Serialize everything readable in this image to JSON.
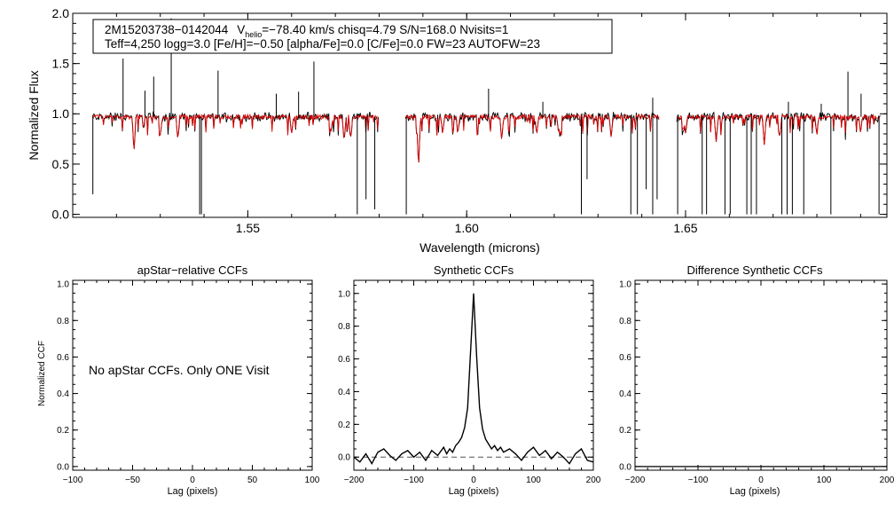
{
  "chart_data": [
    {
      "type": "line",
      "xlabel": "Wavelength (microns)",
      "ylabel": "Normalized Flux",
      "xlim": [
        1.51,
        1.696
      ],
      "ylim": [
        -0.03,
        2.0
      ],
      "xticks": [
        1.55,
        1.6,
        1.65
      ],
      "xtick_labels": [
        "1.55",
        "1.60",
        "1.65"
      ],
      "yticks": [
        0.0,
        0.5,
        1.0,
        1.5,
        2.0
      ],
      "ytick_labels": [
        "0.0",
        "0.5",
        "1.0",
        "1.5",
        "2.0"
      ],
      "grid": false,
      "colors": {
        "observed": "#000000",
        "model": "#e00000"
      },
      "annotation": {
        "line1_object": "2M15203738−0142044",
        "line1_vhelio_v": "V",
        "line1_vhelio_sub": "helio",
        "line1_rest": "=−78.40 km/s  chisq=4.79  S/N=168.0  Nvisits=1",
        "line2": "Teff=4,250 logg=3.0 [Fe/H]=−0.50 [alpha/Fe]=0.0 [C/Fe]=0.0 FW=23 AUTOFW=23"
      },
      "segments": [
        [
          1.5145,
          1.58
        ],
        [
          1.586,
          1.644
        ],
        [
          1.648,
          1.6945
        ]
      ],
      "continuum": 0.97,
      "emission_spikes": [
        {
          "x": 1.5215,
          "y": 1.55
        },
        {
          "x": 1.5265,
          "y": 1.23
        },
        {
          "x": 1.5285,
          "y": 1.37
        },
        {
          "x": 1.5325,
          "y": 1.95
        },
        {
          "x": 1.5432,
          "y": 1.43
        },
        {
          "x": 1.5565,
          "y": 1.2
        },
        {
          "x": 1.5616,
          "y": 1.22
        },
        {
          "x": 1.5651,
          "y": 1.52
        },
        {
          "x": 1.605,
          "y": 1.25
        },
        {
          "x": 1.6174,
          "y": 1.12
        },
        {
          "x": 1.6425,
          "y": 1.16
        },
        {
          "x": 1.6735,
          "y": 1.12
        },
        {
          "x": 1.681,
          "y": 1.1
        },
        {
          "x": 1.6871,
          "y": 1.42
        },
        {
          "x": 1.6901,
          "y": 1.2
        }
      ],
      "bad_pixel_dips": [
        {
          "x": 1.5146,
          "y": 0.2
        },
        {
          "x": 1.539,
          "y": 0.0
        },
        {
          "x": 1.5394,
          "y": 0.0
        },
        {
          "x": 1.575,
          "y": 0.0
        },
        {
          "x": 1.577,
          "y": 0.15
        },
        {
          "x": 1.579,
          "y": 0.05
        },
        {
          "x": 1.5862,
          "y": 0.0
        },
        {
          "x": 1.6262,
          "y": 0.0
        },
        {
          "x": 1.6275,
          "y": 0.35
        },
        {
          "x": 1.6375,
          "y": 0.0
        },
        {
          "x": 1.639,
          "y": 0.0
        },
        {
          "x": 1.641,
          "y": 0.25
        },
        {
          "x": 1.6425,
          "y": 0.0
        },
        {
          "x": 1.6435,
          "y": 0.15
        },
        {
          "x": 1.6482,
          "y": 0.0
        },
        {
          "x": 1.6538,
          "y": 0.0
        },
        {
          "x": 1.6548,
          "y": 0.0
        },
        {
          "x": 1.659,
          "y": 0.0
        },
        {
          "x": 1.6602,
          "y": 0.0
        },
        {
          "x": 1.664,
          "y": 0.0
        },
        {
          "x": 1.665,
          "y": 0.0
        },
        {
          "x": 1.6662,
          "y": 0.0
        },
        {
          "x": 1.672,
          "y": 0.0
        },
        {
          "x": 1.6732,
          "y": 0.0
        },
        {
          "x": 1.6744,
          "y": 0.0
        },
        {
          "x": 1.677,
          "y": 0.0
        },
        {
          "x": 1.6832,
          "y": 0.0
        },
        {
          "x": 1.6942,
          "y": 0.0
        }
      ],
      "absorption_lines": [
        {
          "x": 1.524,
          "y": 0.62
        },
        {
          "x": 1.53,
          "y": 0.78
        },
        {
          "x": 1.534,
          "y": 0.74
        },
        {
          "x": 1.56,
          "y": 0.8
        },
        {
          "x": 1.569,
          "y": 0.82
        },
        {
          "x": 1.572,
          "y": 0.72
        },
        {
          "x": 1.5735,
          "y": 0.76
        },
        {
          "x": 1.589,
          "y": 0.45
        },
        {
          "x": 1.5945,
          "y": 0.8
        },
        {
          "x": 1.598,
          "y": 0.82
        },
        {
          "x": 1.608,
          "y": 0.75
        },
        {
          "x": 1.616,
          "y": 0.79
        },
        {
          "x": 1.621,
          "y": 0.8
        },
        {
          "x": 1.633,
          "y": 0.76
        },
        {
          "x": 1.65,
          "y": 0.8
        },
        {
          "x": 1.657,
          "y": 0.72
        },
        {
          "x": 1.668,
          "y": 0.68
        },
        {
          "x": 1.6715,
          "y": 0.75
        },
        {
          "x": 1.68,
          "y": 0.78
        },
        {
          "x": 1.69,
          "y": 0.82
        }
      ]
    },
    {
      "type": "line",
      "title": "apStar−relative CCFs",
      "xlabel": "Lag (pixels)",
      "ylabel": "Normalized CCF",
      "xlim": [
        -100,
        100
      ],
      "ylim": [
        -0.02,
        1.02
      ],
      "xticks": [
        -100,
        -50,
        0,
        50,
        100
      ],
      "xtick_labels": [
        "−100",
        "−50",
        "0",
        "50",
        "100"
      ],
      "yticks": [
        0.0,
        0.2,
        0.4,
        0.6,
        0.8,
        1.0
      ],
      "ytick_labels": [
        "0.0",
        "0.2",
        "0.4",
        "0.6",
        "0.8",
        "1.0"
      ],
      "message": "No apStar CCFs.  Only ONE Visit",
      "series": []
    },
    {
      "type": "line",
      "title": "Synthetic CCFs",
      "xlabel": "Lag (pixels)",
      "xlim": [
        -200,
        200
      ],
      "ylim": [
        -0.08,
        1.08
      ],
      "xticks": [
        -200,
        -100,
        0,
        100,
        200
      ],
      "xtick_labels": [
        "−200",
        "−100",
        "0",
        "100",
        "200"
      ],
      "yticks": [
        0.0,
        0.2,
        0.4,
        0.6,
        0.8,
        1.0
      ],
      "ytick_labels": [
        "0.0",
        "0.2",
        "0.4",
        "0.6",
        "0.8",
        "1.0"
      ],
      "zero_line": {
        "y": 0.0,
        "style": "dashed"
      },
      "series": [
        {
          "x": [
            -200,
            -190,
            -180,
            -170,
            -160,
            -150,
            -140,
            -130,
            -120,
            -110,
            -100,
            -90,
            -80,
            -70,
            -60,
            -50,
            -45,
            -40,
            -35,
            -30,
            -25,
            -20,
            -15,
            -10,
            -5,
            0,
            5,
            10,
            15,
            20,
            25,
            30,
            35,
            40,
            45,
            50,
            60,
            70,
            80,
            90,
            100,
            110,
            120,
            130,
            140,
            150,
            160,
            170,
            180,
            190,
            200
          ],
          "y": [
            0.0,
            -0.03,
            0.02,
            -0.04,
            0.03,
            0.05,
            0.01,
            -0.02,
            0.02,
            0.04,
            0.0,
            0.03,
            -0.02,
            0.04,
            0.01,
            0.06,
            0.02,
            0.05,
            0.03,
            0.07,
            0.09,
            0.12,
            0.18,
            0.3,
            0.65,
            1.0,
            0.62,
            0.3,
            0.17,
            0.11,
            0.08,
            0.05,
            0.07,
            0.04,
            0.06,
            0.03,
            0.05,
            0.02,
            -0.02,
            0.03,
            0.06,
            0.01,
            0.04,
            -0.01,
            0.03,
            0.0,
            -0.04,
            0.02,
            0.05,
            -0.02,
            -0.03
          ]
        }
      ]
    },
    {
      "type": "line",
      "title": "Difference Synthetic CCFs",
      "xlabel": "Lag (pixels)",
      "xlim": [
        -200,
        200
      ],
      "ylim": [
        -0.02,
        1.02
      ],
      "xticks": [
        -200,
        -100,
        0,
        100,
        200
      ],
      "xtick_labels": [
        "−200",
        "−100",
        "0",
        "100",
        "200"
      ],
      "yticks": [
        0.0,
        0.2,
        0.4,
        0.6,
        0.8,
        1.0
      ],
      "ytick_labels": [
        "0.0",
        "0.2",
        "0.4",
        "0.6",
        "0.8",
        "1.0"
      ],
      "series": [
        {
          "x": [
            -200,
            200
          ],
          "y": [
            0.0,
            0.0
          ]
        }
      ]
    }
  ]
}
